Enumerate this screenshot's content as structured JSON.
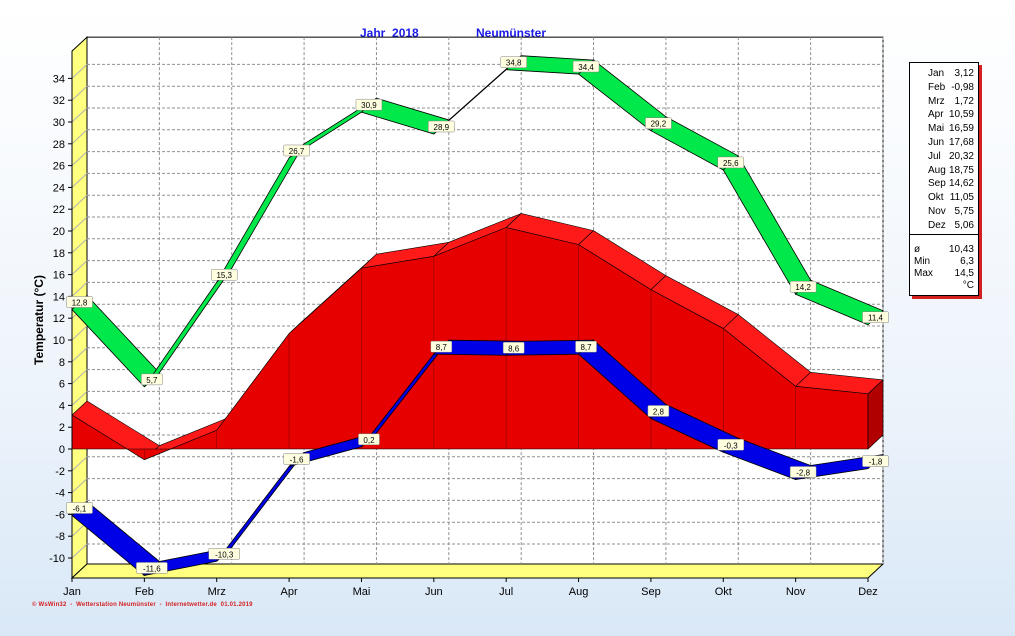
{
  "header": {
    "year_label": "Jahr  2018",
    "station": "Neumünster"
  },
  "footer": "© WsWin32  -  Wetterstation Neumünster  -  Internetwetter.de  01.01.2019",
  "colors": {
    "max_band": "#00e84a",
    "mean_area": "#e60000",
    "min_band": "#0000e6",
    "wall": "#ffff80",
    "title": "#1a1ae6"
  },
  "stats": {
    "months": [
      {
        "label": "Jan",
        "value": "3,12"
      },
      {
        "label": "Feb",
        "value": "-0,98"
      },
      {
        "label": "Mrz",
        "value": "1,72"
      },
      {
        "label": "Apr",
        "value": "10,59"
      },
      {
        "label": "Mai",
        "value": "16,59"
      },
      {
        "label": "Jun",
        "value": "17,68"
      },
      {
        "label": "Jul",
        "value": "20,32"
      },
      {
        "label": "Aug",
        "value": "18,75"
      },
      {
        "label": "Sep",
        "value": "14,62"
      },
      {
        "label": "Okt",
        "value": "11,05"
      },
      {
        "label": "Nov",
        "value": "5,75"
      },
      {
        "label": "Dez",
        "value": "5,06"
      }
    ],
    "avg_symbol": "ø",
    "avg_value": "10,43",
    "min_label": "Min",
    "min_value": "6,3",
    "max_label": "Max",
    "max_value": "14,5",
    "unit": "°C"
  },
  "chart_data": {
    "type": "area",
    "title": "Jahr  2018   Neumünster",
    "ylabel": "Temperatur  (°C)",
    "xlabel": "",
    "ylim": [
      -11.6,
      36.5
    ],
    "yticks": [
      34,
      32,
      30,
      28,
      26,
      24,
      22,
      20,
      18,
      16,
      14,
      12,
      10,
      8,
      6,
      4,
      2,
      0,
      -2,
      -4,
      -6,
      -8,
      -10
    ],
    "grid": true,
    "categories": [
      "Jan",
      "Feb",
      "Mrz",
      "Apr",
      "Mai",
      "Jun",
      "Jul",
      "Aug",
      "Sep",
      "Okt",
      "Nov",
      "Dez"
    ],
    "series": [
      {
        "kind": "band",
        "color": "#00e84a",
        "values": [
          12.8,
          5.7,
          15.3,
          26.7,
          30.9,
          28.9,
          34.8,
          34.4,
          29.2,
          25.6,
          14.2,
          11.4
        ],
        "labels": [
          "12,8",
          "5,7",
          "15,3",
          "26,7",
          "30,9",
          "28,9",
          "34,8",
          "34,4",
          "29,2",
          "25,6",
          "14,2",
          "11,4"
        ]
      },
      {
        "kind": "area",
        "color": "#e60000",
        "values": [
          3.12,
          -0.98,
          1.72,
          10.59,
          16.59,
          17.68,
          20.32,
          18.75,
          14.62,
          11.05,
          5.75,
          5.06
        ]
      },
      {
        "kind": "band",
        "color": "#0000e6",
        "values": [
          -6.1,
          -11.6,
          -10.3,
          -1.6,
          0.2,
          8.7,
          8.6,
          8.7,
          2.8,
          -0.3,
          -2.8,
          -1.8
        ],
        "labels": [
          "-6,1",
          "-11,6",
          "-10,3",
          "-1,6",
          "0,2",
          "8,7",
          "8,6",
          "8,7",
          "2,8",
          "-0,3",
          "-2,8",
          "-1,8"
        ]
      }
    ]
  }
}
